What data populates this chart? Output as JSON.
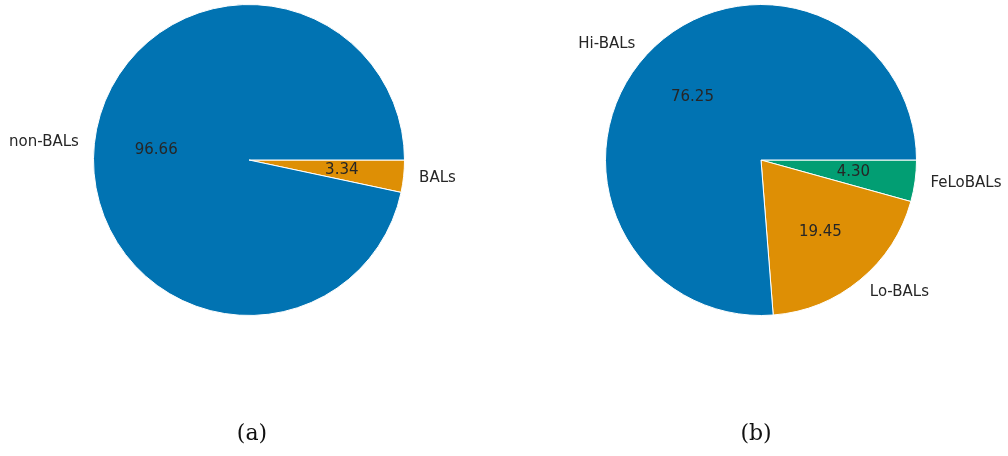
{
  "chart_data": [
    {
      "type": "pie",
      "categories": [
        "non-BALs",
        "BALs"
      ],
      "values": [
        96.66,
        3.34
      ],
      "colors": [
        "#0173b2",
        "#de8f05"
      ],
      "value_labels": [
        "96.66",
        "3.34"
      ],
      "annotations": [
        "(a)"
      ]
    },
    {
      "type": "pie",
      "categories": [
        "Hi-BALs",
        "Lo-BALs",
        "FeLoBALs"
      ],
      "values": [
        76.25,
        19.45,
        4.3
      ],
      "colors": [
        "#0173b2",
        "#de8f05",
        "#029e73"
      ],
      "value_labels": [
        "76.25",
        "19.45",
        "4.30"
      ],
      "annotations": [
        "(b)"
      ]
    }
  ]
}
